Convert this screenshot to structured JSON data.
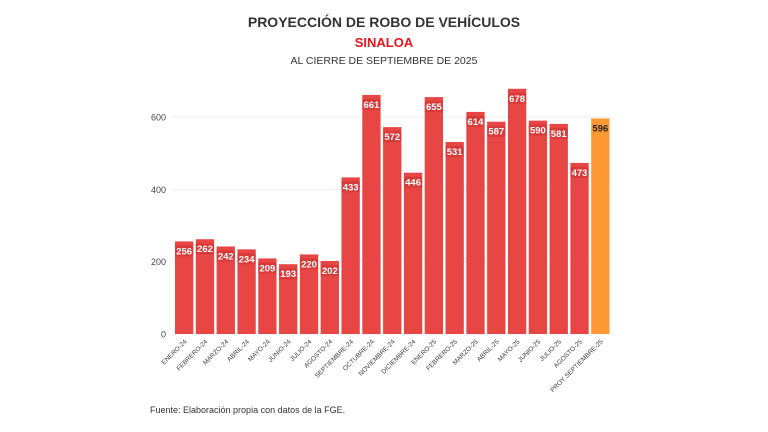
{
  "chart_data": {
    "type": "bar",
    "title": "PROYECCIÓN DE ROBO DE VEHÍCULOS",
    "subtitle": "SINALOA",
    "subtitle2": "AL CIERRE DE SEPTIEMBRE DE 2025",
    "categories": [
      "ENERO-24",
      "FEBRERO-24",
      "MARZO-24",
      "ABRIL-24",
      "MAYO-24",
      "JUNIO-24",
      "JULIO-24",
      "AGOSTO-24",
      "SEPTIEMBRE-24",
      "OCTUBRE-24",
      "NOVIEMBRE-24",
      "DICIEMBRE-24",
      "ENERO-25",
      "FEBRERO-25",
      "MARZO-25",
      "ABRIL-25",
      "MAYO-25",
      "JUNIO-25",
      "JULIO-25",
      "AGOSTO-25",
      "PROY SEPTIEMBRE-25"
    ],
    "values": [
      256,
      262,
      242,
      234,
      209,
      193,
      220,
      202,
      433,
      661,
      572,
      446,
      655,
      531,
      614,
      587,
      678,
      590,
      581,
      473,
      596
    ],
    "colors": {
      "actual": "#e84545",
      "projection": "#ff9933"
    },
    "yticks": [
      0,
      200,
      400,
      600
    ],
    "ylim": [
      0,
      700
    ],
    "grid": true,
    "source": "Fuente: Elaboración propia con datos de la FGE."
  }
}
